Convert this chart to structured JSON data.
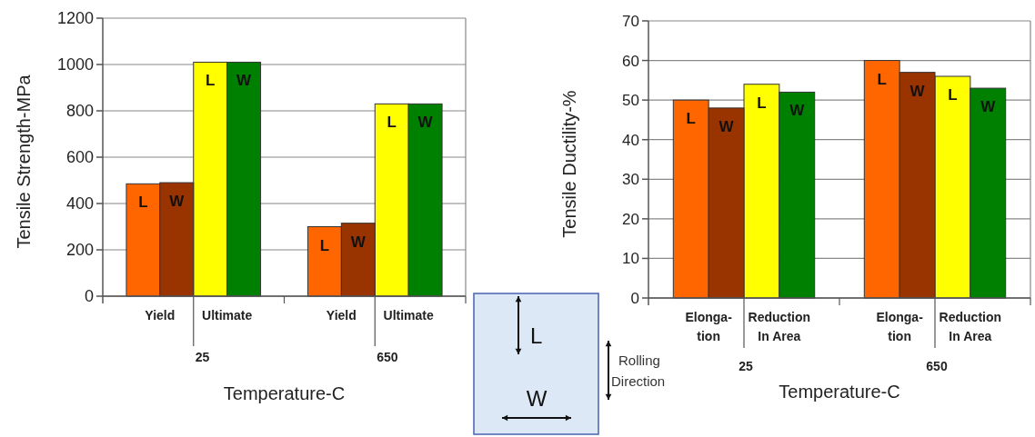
{
  "chart_data": [
    {
      "type": "bar",
      "ylabel": "Tensile Strength-MPa",
      "xlabel": "Temperature-C",
      "categories": [
        "Yield",
        "Ultimate",
        "Yield",
        "Ultimate"
      ],
      "series": [
        {
          "name": "L",
          "colors": [
            "#ff6600",
            "#ffff00",
            "#ff6600",
            "#ffff00"
          ],
          "values": [
            485,
            1010,
            300,
            830
          ]
        },
        {
          "name": "W",
          "colors": [
            "#993300",
            "#008000",
            "#993300",
            "#008000"
          ],
          "values": [
            490,
            1010,
            315,
            830
          ]
        }
      ],
      "annotations": [
        "25",
        "650"
      ],
      "ylim": [
        0,
        1200
      ],
      "yticks": [
        0,
        200,
        400,
        600,
        800,
        1000,
        1200
      ],
      "grid": "y"
    },
    {
      "type": "other",
      "annotations": [
        "L",
        "W",
        "Rolling Direction"
      ]
    },
    {
      "type": "bar",
      "ylabel": "Tensile Ductility-%",
      "xlabel": "Temperature-C",
      "categories": [
        "Elonga-\ntion",
        "Reduction\nIn Area",
        "Elonga-\ntion",
        "Reduction\nIn Area"
      ],
      "series": [
        {
          "name": "L",
          "colors": [
            "#ff6600",
            "#ffff00",
            "#ff6600",
            "#ffff00"
          ],
          "values": [
            50,
            54,
            60,
            56
          ]
        },
        {
          "name": "W",
          "colors": [
            "#993300",
            "#008000",
            "#993300",
            "#008000"
          ],
          "values": [
            48,
            52,
            57,
            53
          ]
        }
      ],
      "annotations": [
        "25",
        "650"
      ],
      "ylim": [
        0,
        70
      ],
      "yticks": [
        0,
        10,
        20,
        30,
        40,
        50,
        60,
        70
      ],
      "grid": "y"
    }
  ]
}
